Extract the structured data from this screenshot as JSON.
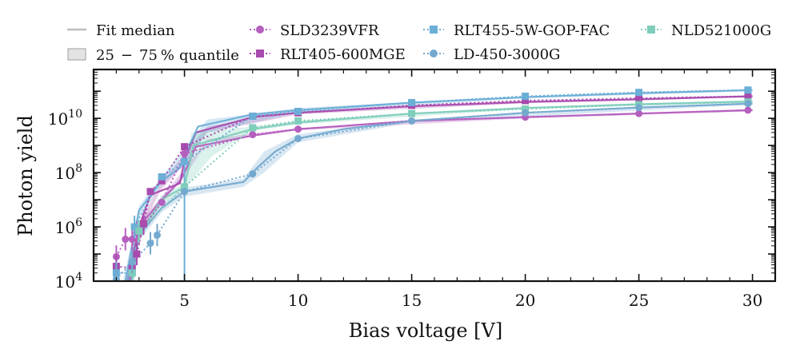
{
  "chart_data": {
    "type": "line",
    "xlabel": "Bias voltage [V]",
    "ylabel": "Photon yield",
    "xlim": [
      1.0,
      31.0
    ],
    "ylim_log10": [
      4,
      11.8
    ],
    "y_scale": "log",
    "x_ticks": [
      5,
      10,
      15,
      20,
      25,
      30
    ],
    "x_tick_labels": [
      "5",
      "10",
      "15",
      "20",
      "25",
      "30"
    ],
    "y_ticks_exp": [
      4,
      6,
      8,
      10
    ],
    "y_tick_labels": [
      {
        "base": "10",
        "exp": "4"
      },
      {
        "base": "10",
        "exp": "6"
      },
      {
        "base": "10",
        "exp": "8"
      },
      {
        "base": "10",
        "exp": "10"
      }
    ],
    "legend": {
      "position": "top",
      "fit_median_label": "Fit median",
      "quantile_label": "25 − 75 % quantile",
      "quantile_label_parts": [
        "25",
        "−",
        "75",
        "%",
        "quantile"
      ]
    },
    "series": [
      {
        "name": "SLD3239VFR",
        "color": "#b55fbf",
        "marker": "circle",
        "points": [
          [
            2.0,
            80000.0
          ],
          [
            2.4,
            350000.0
          ],
          [
            2.7,
            350000.0
          ],
          [
            2.9,
            600000.0
          ],
          [
            3.0,
            600000.0
          ],
          [
            4.0,
            8000000.0
          ],
          [
            5.0,
            500000000.0
          ],
          [
            8.0,
            2500000000.0
          ],
          [
            10.0,
            4000000000.0
          ],
          [
            15.0,
            8000000000.0
          ],
          [
            20.0,
            11000000000.0
          ],
          [
            25.0,
            15000000000.0
          ],
          [
            29.8,
            20000000000.0
          ]
        ],
        "fit_median": [
          [
            2.6,
            10000.0
          ],
          [
            3.0,
            1000000.0
          ],
          [
            4.0,
            10000000.0
          ],
          [
            4.8,
            50000000.0
          ],
          [
            5.0,
            100000000.0
          ],
          [
            5.5,
            900000000.0
          ],
          [
            8.0,
            2300000000.0
          ],
          [
            10.0,
            4000000000.0
          ],
          [
            15.0,
            8000000000.0
          ],
          [
            20.0,
            11000000000.0
          ],
          [
            25.0,
            15000000000.0
          ],
          [
            30.0,
            20000000000.0
          ]
        ],
        "quantile_band": {
          "lower": [
            [
              2.7,
              10000.0
            ],
            [
              3.0,
              600000.0
            ],
            [
              4.0,
              7000000.0
            ],
            [
              5.0,
              70000000.0
            ],
            [
              6.0,
              1300000000.0
            ],
            [
              10.0,
              3600000000.0
            ],
            [
              20.0,
              10000000000.0
            ],
            [
              30.0,
              18000000000.0
            ]
          ],
          "upper": [
            [
              2.5,
              10000.0
            ],
            [
              3.0,
              1500000.0
            ],
            [
              4.0,
              13000000.0
            ],
            [
              5.0,
              140000000.0
            ],
            [
              6.0,
              1700000000.0
            ],
            [
              10.0,
              4400000000.0
            ],
            [
              20.0,
              12000000000.0
            ],
            [
              30.0,
              22000000000.0
            ]
          ]
        }
      },
      {
        "name": "RLT405-600MGE",
        "color": "#a84aae",
        "marker": "square",
        "points": [
          [
            2.0,
            35000.0
          ],
          [
            2.7,
            30000.0
          ],
          [
            2.9,
            100000.0
          ],
          [
            3.2,
            1300000.0
          ],
          [
            3.5,
            20000000.0
          ],
          [
            4.0,
            50000000.0
          ],
          [
            5.0,
            900000000.0
          ],
          [
            8.0,
            12000000000.0
          ],
          [
            10.0,
            16000000000.0
          ],
          [
            15.0,
            30000000000.0
          ],
          [
            20.0,
            45000000000.0
          ],
          [
            25.0,
            55000000000.0
          ],
          [
            29.8,
            65000000000.0
          ]
        ],
        "fit_median": [
          [
            2.5,
            10000.0
          ],
          [
            3.0,
            1000000.0
          ],
          [
            3.5,
            15000000.0
          ],
          [
            4.8,
            40000000.0
          ],
          [
            5.0,
            300000000.0
          ],
          [
            5.5,
            3000000000.0
          ],
          [
            8.0,
            11000000000.0
          ],
          [
            10.0,
            16000000000.0
          ],
          [
            15.0,
            28000000000.0
          ],
          [
            20.0,
            40000000000.0
          ],
          [
            25.0,
            50000000000.0
          ],
          [
            30.0,
            65000000000.0
          ]
        ],
        "quantile_band": {
          "lower": [
            [
              2.6,
              10000.0
            ],
            [
              3.0,
              700000.0
            ],
            [
              4.0,
              25000000.0
            ],
            [
              5.0,
              200000000.0
            ],
            [
              6.0,
              3000000000.0
            ],
            [
              10.0,
              14000000000.0
            ],
            [
              20.0,
              36000000000.0
            ],
            [
              30.0,
              60000000000.0
            ]
          ],
          "upper": [
            [
              2.4,
              10000.0
            ],
            [
              3.0,
              1400000.0
            ],
            [
              4.0,
              45000000.0
            ],
            [
              5.0,
              500000000.0
            ],
            [
              6.0,
              5000000000.0
            ],
            [
              10.0,
              18000000000.0
            ],
            [
              20.0,
              44000000000.0
            ],
            [
              30.0,
              70000000000.0
            ]
          ]
        }
      },
      {
        "name": "RLT455-5W-GOP-FAC",
        "color": "#6baed6",
        "marker": "square",
        "points": [
          [
            2.0,
            20000.0
          ],
          [
            2.7,
            20000.0
          ],
          [
            2.8,
            1000000.0
          ],
          [
            4.0,
            70000000.0
          ],
          [
            5.0,
            250000000.0
          ],
          [
            8.0,
            12000000000.0
          ],
          [
            10.0,
            18000000000.0
          ],
          [
            15.0,
            38000000000.0
          ],
          [
            20.0,
            65000000000.0
          ],
          [
            25.0,
            90000000000.0
          ],
          [
            29.8,
            110000000000.0
          ]
        ],
        "fit_median": [
          [
            2.4,
            10000.0
          ],
          [
            3.0,
            4000000.0
          ],
          [
            4.0,
            50000000.0
          ],
          [
            4.8,
            150000000.0
          ],
          [
            5.0,
            400000000.0
          ],
          [
            5.6,
            5000000000.0
          ],
          [
            8.0,
            14000000000.0
          ],
          [
            10.0,
            20000000000.0
          ],
          [
            15.0,
            38000000000.0
          ],
          [
            20.0,
            60000000000.0
          ],
          [
            25.0,
            85000000000.0
          ],
          [
            30.0,
            110000000000.0
          ]
        ],
        "quantile_band": {
          "lower": [
            [
              2.5,
              10000.0
            ],
            [
              3.0,
              2000000.0
            ],
            [
              4.0,
              35000000.0
            ],
            [
              5.0,
              200000000.0
            ],
            [
              6.0,
              3000000000.0
            ],
            [
              10.0,
              16000000000.0
            ],
            [
              20.0,
              55000000000.0
            ],
            [
              30.0,
              100000000000.0
            ]
          ],
          "upper": [
            [
              2.3,
              10000.0
            ],
            [
              3.0,
              6000000.0
            ],
            [
              4.0,
              70000000.0
            ],
            [
              5.0,
              800000000.0
            ],
            [
              6.0,
              9000000000.0
            ],
            [
              10.0,
              24000000000.0
            ],
            [
              20.0,
              65000000000.0
            ],
            [
              30.0,
              120000000000.0
            ]
          ]
        },
        "zero_drop_voltage": 5.0
      },
      {
        "name": "NLD521000G",
        "color": "#7fcdbb",
        "marker": "square",
        "points": [
          [
            2.7,
            20000.0
          ],
          [
            3.0,
            700000.0
          ],
          [
            5.0,
            30000000.0
          ],
          [
            8.0,
            4500000000.0
          ],
          [
            10.0,
            8000000000.0
          ],
          [
            15.0,
            15000000000.0
          ],
          [
            20.0,
            22000000000.0
          ],
          [
            25.0,
            32000000000.0
          ],
          [
            29.8,
            40000000000.0
          ]
        ],
        "fit_median": [
          [
            2.7,
            10000.0
          ],
          [
            3.0,
            500000.0
          ],
          [
            4.0,
            10000000.0
          ],
          [
            5.0,
            30000000.0
          ],
          [
            5.4,
            1000000000.0
          ],
          [
            8.0,
            4000000000.0
          ],
          [
            10.0,
            7000000000.0
          ],
          [
            15.0,
            15000000000.0
          ],
          [
            20.0,
            24000000000.0
          ],
          [
            25.0,
            33000000000.0
          ],
          [
            30.0,
            42000000000.0
          ]
        ],
        "quantile_band": {
          "lower": [
            [
              2.8,
              10000.0
            ],
            [
              3.0,
              300000.0
            ],
            [
              4.0,
              7000000.0
            ],
            [
              5.0,
              25000000.0
            ],
            [
              6.2,
              400000000.0
            ],
            [
              8.0,
              3500000000.0
            ],
            [
              10.0,
              6000000000.0
            ],
            [
              20.0,
              22000000000.0
            ],
            [
              30.0,
              38000000000.0
            ]
          ],
          "upper": [
            [
              2.6,
              10000.0
            ],
            [
              3.0,
              800000.0
            ],
            [
              4.0,
              15000000.0
            ],
            [
              5.0,
              40000000.0
            ],
            [
              5.3,
              3000000000.0
            ],
            [
              8.0,
              5000000000.0
            ],
            [
              10.0,
              8000000000.0
            ],
            [
              20.0,
              26000000000.0
            ],
            [
              30.0,
              46000000000.0
            ]
          ]
        }
      },
      {
        "name": "LD-450-3000G",
        "color": "#74a9cf",
        "marker": "circle",
        "points": [
          [
            2.0,
            12000.0
          ],
          [
            2.7,
            50000.0
          ],
          [
            3.5,
            250000.0
          ],
          [
            3.8,
            500000.0
          ],
          [
            5.0,
            20000000.0
          ],
          [
            8.0,
            90000000.0
          ],
          [
            10.0,
            1800000000.0
          ],
          [
            15.0,
            8000000000.0
          ],
          [
            20.0,
            16000000000.0
          ],
          [
            25.0,
            25000000000.0
          ],
          [
            29.8,
            35000000000.0
          ]
        ],
        "fit_median": [
          [
            2.5,
            10000.0
          ],
          [
            3.0,
            500000.0
          ],
          [
            4.0,
            5000000.0
          ],
          [
            5.0,
            20000000.0
          ],
          [
            7.6,
            45000000.0
          ],
          [
            8.2,
            150000000.0
          ],
          [
            9.0,
            600000000.0
          ],
          [
            10.0,
            1800000000.0
          ],
          [
            12.0,
            4000000000.0
          ],
          [
            15.0,
            8000000000.0
          ],
          [
            20.0,
            16000000000.0
          ],
          [
            25.0,
            25000000000.0
          ],
          [
            30.0,
            35000000000.0
          ]
        ],
        "quantile_band": {
          "lower": [
            [
              2.6,
              10000.0
            ],
            [
              3.0,
              300000.0
            ],
            [
              4.0,
              3500000.0
            ],
            [
              5.0,
              13000000.0
            ],
            [
              7.6,
              30000000.0
            ],
            [
              8.5,
              100000000.0
            ],
            [
              10.0,
              1300000000.0
            ],
            [
              15.0,
              7000000000.0
            ],
            [
              30.0,
              32000000000.0
            ]
          ],
          "upper": [
            [
              2.4,
              10000.0
            ],
            [
              3.0,
              800000.0
            ],
            [
              4.0,
              7000000.0
            ],
            [
              5.0,
              28000000.0
            ],
            [
              7.6,
              60000000.0
            ],
            [
              8.5,
              600000000.0
            ],
            [
              10.0,
              2600000000.0
            ],
            [
              15.0,
              9000000000.0
            ],
            [
              30.0,
              38000000000.0
            ]
          ]
        }
      }
    ]
  }
}
